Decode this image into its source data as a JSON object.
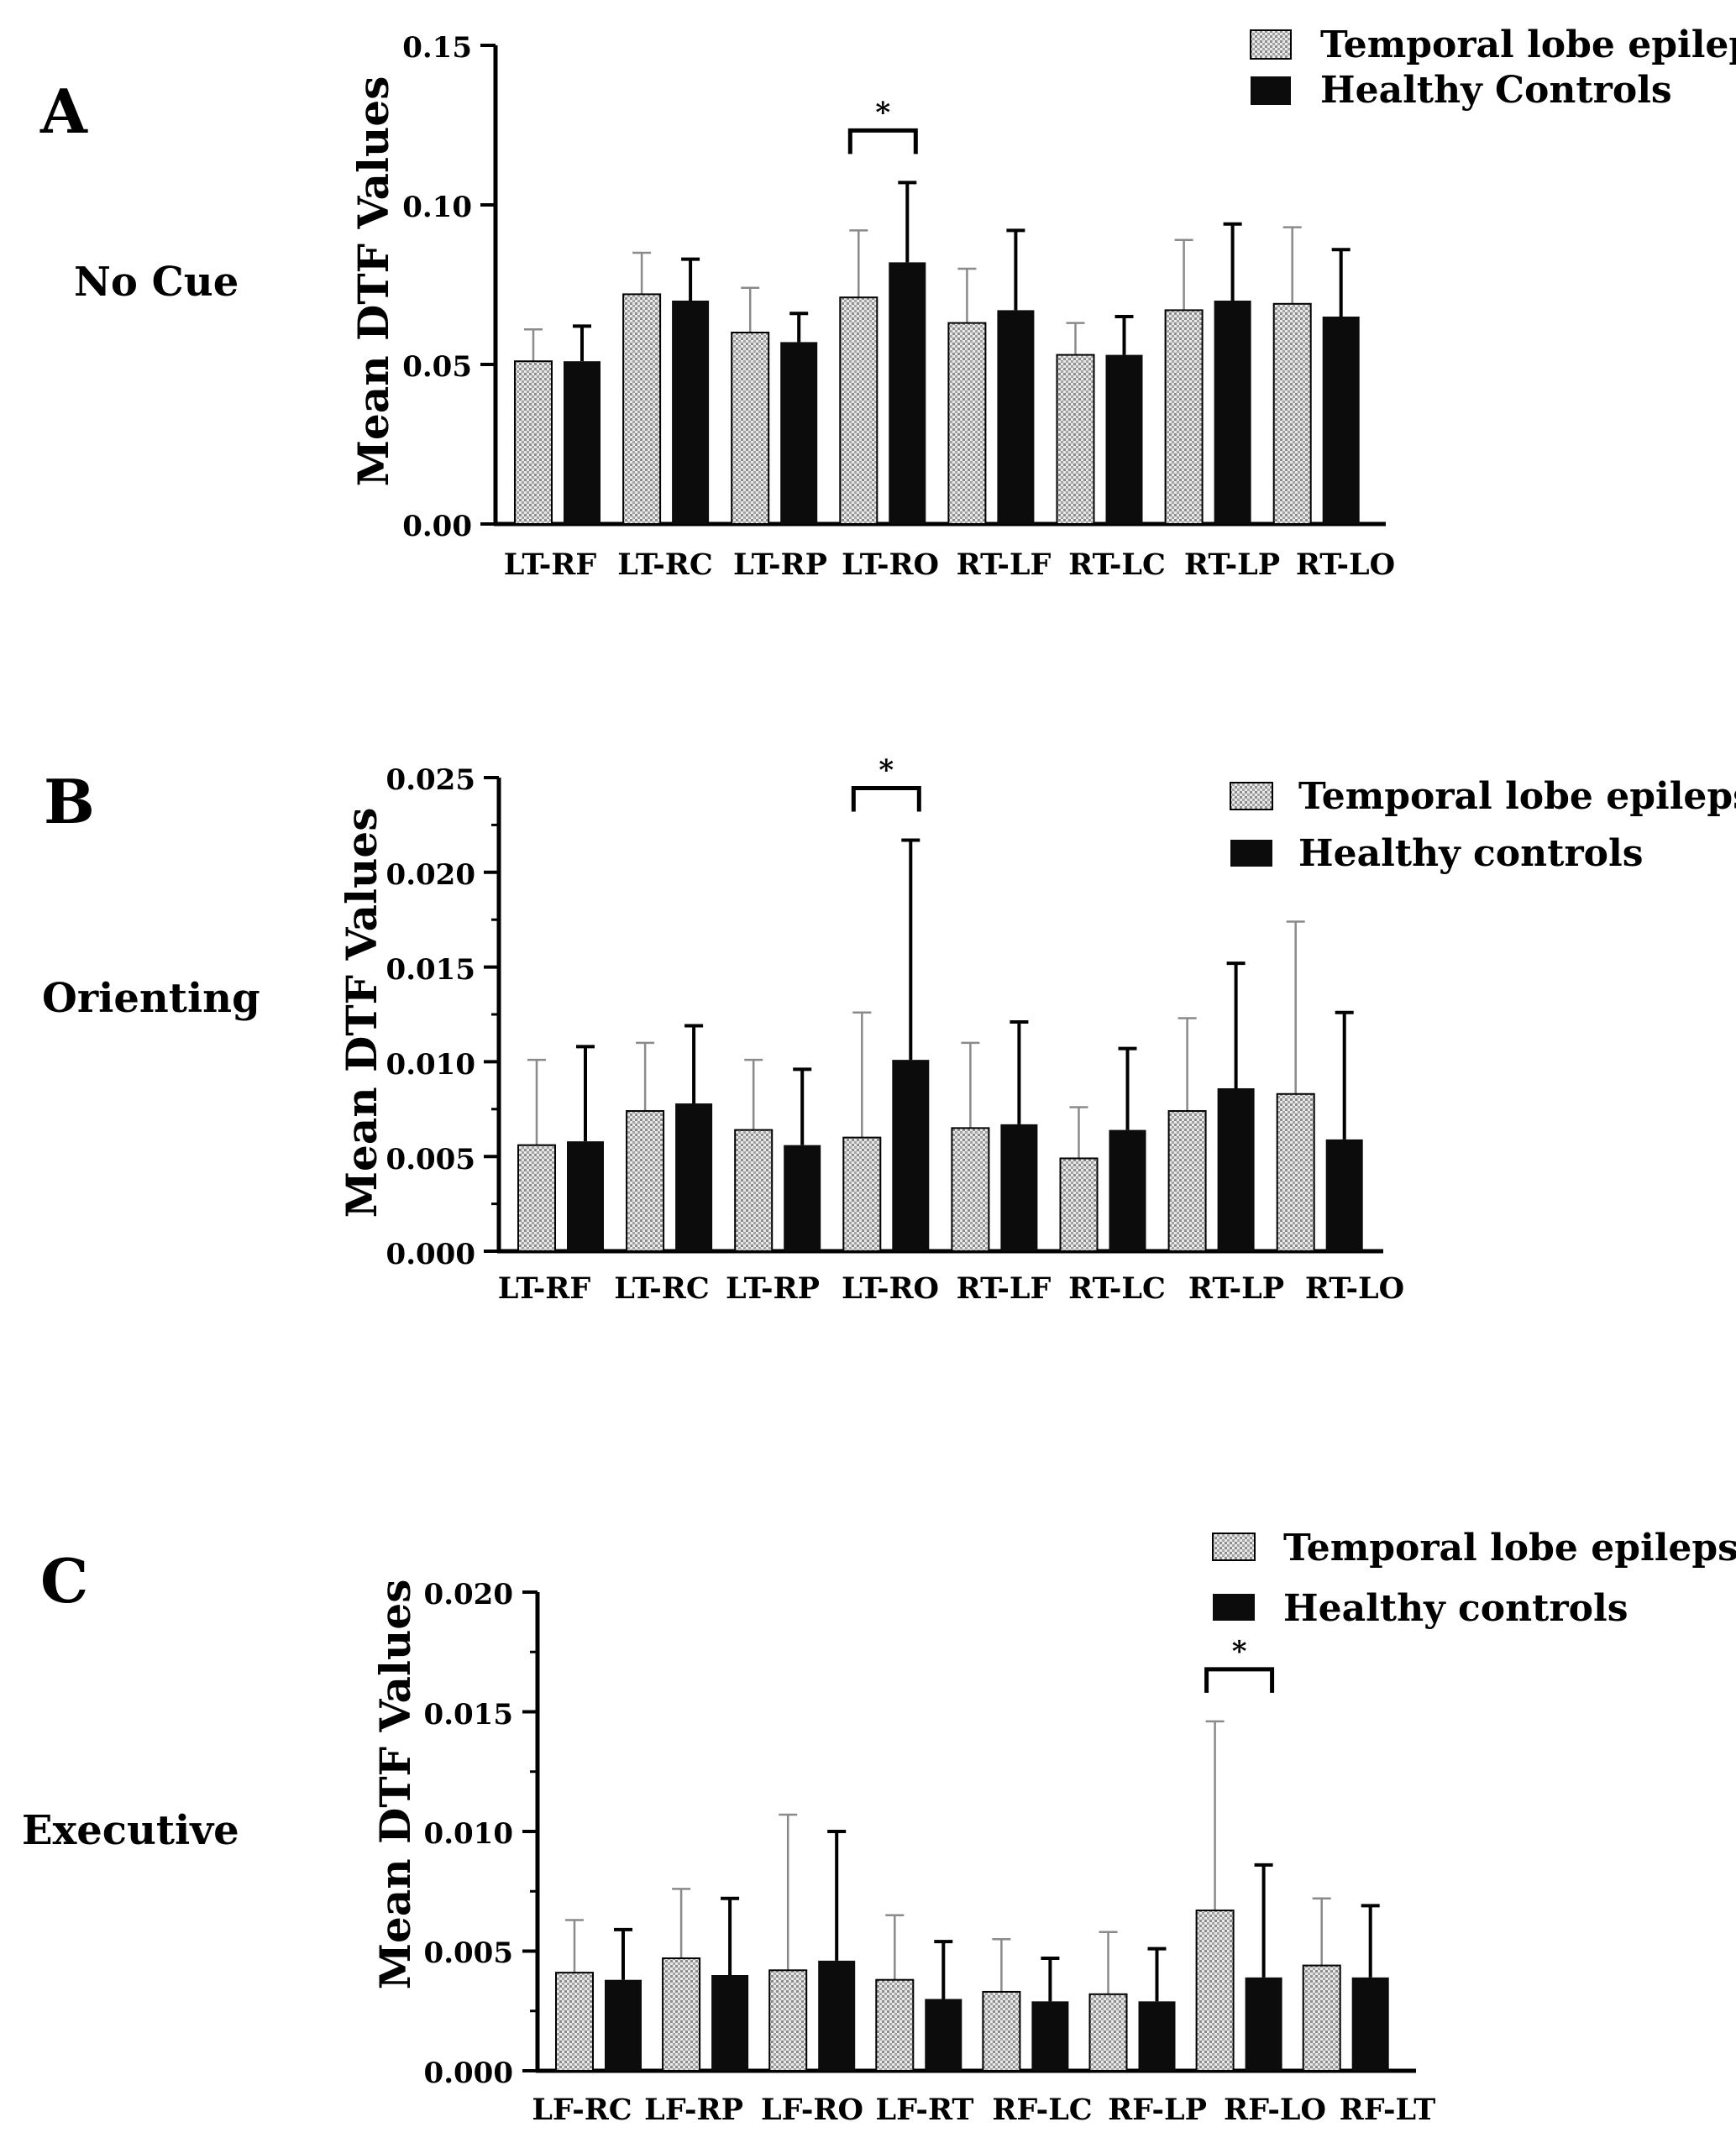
{
  "chart_data": [
    {
      "type": "bar",
      "panel_label": "A",
      "condition": "No Cue",
      "ylabel": "Mean DTF Values",
      "ylim": [
        0,
        0.15
      ],
      "yticks": [
        "0.00",
        "0.05",
        "0.10",
        "0.15"
      ],
      "categories": [
        "LT-RF",
        "LT-RC",
        "LT-RP",
        "LT-RO",
        "RT-LF",
        "RT-LC",
        "RT-LP",
        "RT-LO"
      ],
      "series": [
        {
          "name": "Temporal lobe epilepsy",
          "values": [
            0.051,
            0.072,
            0.06,
            0.071,
            0.063,
            0.053,
            0.067,
            0.069
          ],
          "errors": [
            0.01,
            0.013,
            0.014,
            0.021,
            0.017,
            0.01,
            0.022,
            0.024
          ]
        },
        {
          "name": "Healthy Controls",
          "values": [
            0.051,
            0.07,
            0.057,
            0.082,
            0.067,
            0.053,
            0.07,
            0.065
          ],
          "errors": [
            0.011,
            0.013,
            0.009,
            0.025,
            0.025,
            0.012,
            0.024,
            0.021
          ]
        }
      ],
      "significance": [
        {
          "category": "LT-RO",
          "label": "*"
        }
      ],
      "legend_position": "top-right"
    },
    {
      "type": "bar",
      "panel_label": "B",
      "condition": "Orienting",
      "ylabel": "Mean DTF Values",
      "ylim": [
        0,
        0.025
      ],
      "yticks": [
        "0.000",
        "0.005",
        "0.010",
        "0.015",
        "0.020",
        "0.025"
      ],
      "categories": [
        "LT-RF",
        "LT-RC",
        "LT-RP",
        "LT-RO",
        "RT-LF",
        "RT-LC",
        "RT-LP",
        "RT-LO"
      ],
      "series": [
        {
          "name": "Temporal lobe epilepsy",
          "values": [
            0.0056,
            0.0074,
            0.0064,
            0.006,
            0.0065,
            0.0049,
            0.0074,
            0.0083
          ],
          "errors": [
            0.0045,
            0.0036,
            0.0037,
            0.0066,
            0.0045,
            0.0027,
            0.0049,
            0.0091
          ]
        },
        {
          "name": "Healthy controls",
          "values": [
            0.0058,
            0.0078,
            0.0056,
            0.0101,
            0.0067,
            0.0064,
            0.0086,
            0.0059
          ],
          "errors": [
            0.005,
            0.0041,
            0.004,
            0.0116,
            0.0054,
            0.0043,
            0.0066,
            0.0067
          ]
        }
      ],
      "significance": [
        {
          "category": "LT-RO",
          "label": "*"
        }
      ],
      "legend_position": "top-right"
    },
    {
      "type": "bar",
      "panel_label": "C",
      "condition": "Executive",
      "ylabel": "Mean DTF Values",
      "ylim": [
        0,
        0.02
      ],
      "yticks": [
        "0.000",
        "0.005",
        "0.010",
        "0.015",
        "0.020"
      ],
      "categories": [
        "LF-RC",
        "LF-RP",
        "LF-RO",
        "LF-RT",
        "RF-LC",
        "RF-LP",
        "RF-LO",
        "RF-LT"
      ],
      "series": [
        {
          "name": "Temporal lobe epilepsy",
          "values": [
            0.0041,
            0.0047,
            0.0042,
            0.0038,
            0.0033,
            0.0032,
            0.0067,
            0.0044
          ],
          "errors": [
            0.0022,
            0.0029,
            0.0065,
            0.0027,
            0.0022,
            0.0026,
            0.0079,
            0.0028
          ]
        },
        {
          "name": "Healthy controls",
          "values": [
            0.0038,
            0.004,
            0.0046,
            0.003,
            0.0029,
            0.0029,
            0.0039,
            0.0039
          ],
          "errors": [
            0.0021,
            0.0032,
            0.0054,
            0.0024,
            0.0018,
            0.0022,
            0.0047,
            0.003
          ]
        }
      ],
      "significance": [
        {
          "category": "RF-LO",
          "label": "*"
        }
      ],
      "legend_position": "top-right"
    }
  ]
}
